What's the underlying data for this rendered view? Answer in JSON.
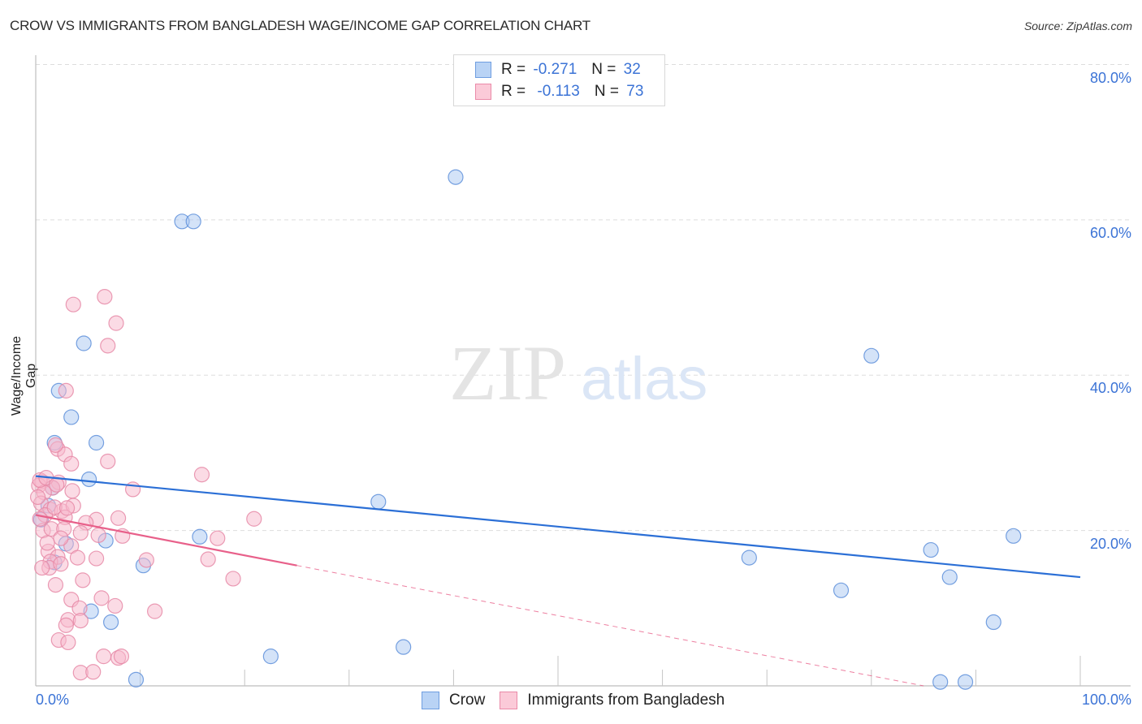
{
  "header": {
    "title": "CROW VS IMMIGRANTS FROM BANGLADESH WAGE/INCOME GAP CORRELATION CHART",
    "source": "Source: ZipAtlas.com"
  },
  "legend": {
    "rows": [
      {
        "r_label": "R =",
        "r_value": "-0.271",
        "n_label": "N =",
        "n_value": "32",
        "color": "#a9c8f2",
        "border": "#6f9ee0"
      },
      {
        "r_label": "R =",
        "r_value": "-0.113",
        "n_label": "N =",
        "n_value": "73",
        "color": "#f9c3d3",
        "border": "#ea8aa8"
      }
    ],
    "bottom": [
      {
        "label": "Crow"
      },
      {
        "label": "Immigrants from Bangladesh"
      }
    ]
  },
  "axes": {
    "ylabel": "Wage/Income Gap",
    "yticks": [
      "80.0%",
      "60.0%",
      "40.0%",
      "20.0%"
    ],
    "xticks": [
      "0.0%",
      "100.0%"
    ]
  },
  "watermark": {
    "zip": "ZIP",
    "atlas": "atlas"
  },
  "colors": {
    "crow_fill": "#a9c8f2",
    "crow_stroke": "#5f90da",
    "crow_line": "#2b6fd6",
    "bangladesh_fill": "#f7b8cb",
    "bangladesh_stroke": "#e68aa7",
    "bangladesh_line": "#e8608a",
    "tick_text": "#3b73d6"
  },
  "chart_data": {
    "type": "scatter",
    "title": "CROW VS IMMIGRANTS FROM BANGLADESH WAGE/INCOME GAP CORRELATION CHART",
    "xlabel": "",
    "ylabel": "Wage/Income Gap",
    "xlim": [
      0,
      100
    ],
    "ylim": [
      0,
      80
    ],
    "grid": true,
    "legend_position": "top-center",
    "series": [
      {
        "name": "Crow",
        "r": -0.271,
        "n": 32,
        "trend": {
          "x0": 0,
          "y0": 27.0,
          "x1": 100,
          "y1": 14.0
        },
        "points": [
          [
            40.2,
            65.5
          ],
          [
            14.0,
            59.8
          ],
          [
            15.1,
            59.8
          ],
          [
            80.0,
            42.5
          ],
          [
            4.6,
            44.1
          ],
          [
            2.2,
            38.0
          ],
          [
            3.4,
            34.6
          ],
          [
            1.8,
            31.3
          ],
          [
            5.8,
            31.3
          ],
          [
            5.1,
            26.6
          ],
          [
            32.8,
            23.7
          ],
          [
            15.7,
            19.2
          ],
          [
            6.7,
            18.7
          ],
          [
            68.3,
            16.5
          ],
          [
            85.7,
            17.5
          ],
          [
            93.6,
            19.3
          ],
          [
            87.5,
            14.0
          ],
          [
            10.3,
            15.5
          ],
          [
            1.8,
            15.9
          ],
          [
            2.9,
            18.3
          ],
          [
            5.3,
            9.6
          ],
          [
            7.2,
            8.2
          ],
          [
            77.1,
            12.3
          ],
          [
            91.7,
            8.2
          ],
          [
            22.5,
            3.8
          ],
          [
            35.2,
            5.0
          ],
          [
            9.6,
            0.8
          ],
          [
            86.6,
            0.5
          ],
          [
            89.0,
            0.5
          ],
          [
            1.2,
            23.2
          ],
          [
            0.5,
            21.4
          ],
          [
            1.6,
            25.5
          ]
        ]
      },
      {
        "name": "Immigrants from Bangladesh",
        "r": -0.113,
        "n": 73,
        "trend": {
          "x0": 0,
          "y0": 22.0,
          "x1": 25,
          "y1": 15.5,
          "dashed_to": {
            "x": 85,
            "y": 0
          }
        },
        "points": [
          [
            6.6,
            50.1
          ],
          [
            3.6,
            49.1
          ],
          [
            7.7,
            46.7
          ],
          [
            6.9,
            43.8
          ],
          [
            2.9,
            38.0
          ],
          [
            2.1,
            30.5
          ],
          [
            2.8,
            29.8
          ],
          [
            1.9,
            31.0
          ],
          [
            6.9,
            28.9
          ],
          [
            3.4,
            28.6
          ],
          [
            15.9,
            27.2
          ],
          [
            2.2,
            26.2
          ],
          [
            0.6,
            26.3
          ],
          [
            0.3,
            25.8
          ],
          [
            1.6,
            25.5
          ],
          [
            0.8,
            24.9
          ],
          [
            3.5,
            25.1
          ],
          [
            9.3,
            25.3
          ],
          [
            0.5,
            23.5
          ],
          [
            1.4,
            22.7
          ],
          [
            2.5,
            22.5
          ],
          [
            3.6,
            23.2
          ],
          [
            0.9,
            22.0
          ],
          [
            2.8,
            21.7
          ],
          [
            5.8,
            21.4
          ],
          [
            7.9,
            21.6
          ],
          [
            20.9,
            21.5
          ],
          [
            0.7,
            20.0
          ],
          [
            1.5,
            20.2
          ],
          [
            2.7,
            20.2
          ],
          [
            4.8,
            21.0
          ],
          [
            4.3,
            19.7
          ],
          [
            6.0,
            19.4
          ],
          [
            8.3,
            19.3
          ],
          [
            17.4,
            19.0
          ],
          [
            3.4,
            18.0
          ],
          [
            1.2,
            17.3
          ],
          [
            2.1,
            16.6
          ],
          [
            1.4,
            16.0
          ],
          [
            4.0,
            16.5
          ],
          [
            5.8,
            16.4
          ],
          [
            10.6,
            16.2
          ],
          [
            16.5,
            16.3
          ],
          [
            1.3,
            15.2
          ],
          [
            2.4,
            15.7
          ],
          [
            0.6,
            15.2
          ],
          [
            4.5,
            13.6
          ],
          [
            18.9,
            13.8
          ],
          [
            1.9,
            13.0
          ],
          [
            6.3,
            11.3
          ],
          [
            3.4,
            11.1
          ],
          [
            7.6,
            10.3
          ],
          [
            4.2,
            10.0
          ],
          [
            11.4,
            9.6
          ],
          [
            3.1,
            8.5
          ],
          [
            4.3,
            8.4
          ],
          [
            2.9,
            7.8
          ],
          [
            2.2,
            5.9
          ],
          [
            3.1,
            5.6
          ],
          [
            6.5,
            3.8
          ],
          [
            7.9,
            3.6
          ],
          [
            8.2,
            3.8
          ],
          [
            4.3,
            1.7
          ],
          [
            5.5,
            1.8
          ],
          [
            0.4,
            26.5
          ],
          [
            1.0,
            26.8
          ],
          [
            2.0,
            25.9
          ],
          [
            0.2,
            24.3
          ],
          [
            1.8,
            23.0
          ],
          [
            3.0,
            22.9
          ],
          [
            0.4,
            21.5
          ],
          [
            2.4,
            19.0
          ],
          [
            1.1,
            18.4
          ]
        ]
      }
    ]
  }
}
